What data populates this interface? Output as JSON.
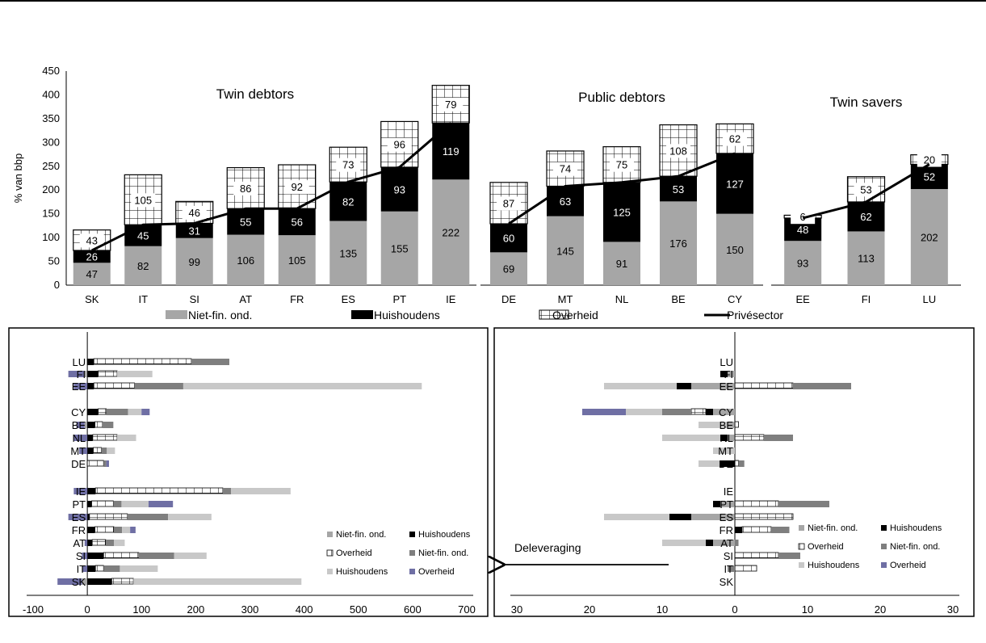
{
  "colors": {
    "nonfin": "#a6a6a6",
    "households": "#000000",
    "government": "#ffffff",
    "nonfin_flow": "#7f7f7f",
    "households_flow": "#c8c8c8",
    "government_flow": "#6f6fa4"
  },
  "chart_data": [
    {
      "type": "bar",
      "stacked": true,
      "ylabel": "% van bbp",
      "ylim": [
        0,
        450
      ],
      "yticks": [
        0,
        50,
        100,
        150,
        200,
        250,
        300,
        350,
        400,
        450
      ],
      "groups": [
        {
          "title": "Twin debtors",
          "categories": [
            "SK",
            "IT",
            "SI",
            "AT",
            "FR",
            "ES",
            "PT",
            "IE"
          ]
        },
        {
          "title": "Public debtors",
          "categories": [
            "DE",
            "MT",
            "NL",
            "BE",
            "CY"
          ]
        },
        {
          "title": "Twin savers",
          "categories": [
            "EE",
            "FI",
            "LU"
          ]
        }
      ],
      "categories": [
        "SK",
        "IT",
        "SI",
        "AT",
        "FR",
        "ES",
        "PT",
        "IE",
        "DE",
        "MT",
        "NL",
        "BE",
        "CY",
        "EE",
        "FI",
        "LU"
      ],
      "series": [
        {
          "name": "Niet-fin. ond.",
          "values": [
            47,
            82,
            99,
            106,
            105,
            135,
            155,
            222,
            69,
            145,
            91,
            176,
            150,
            93,
            113,
            202
          ]
        },
        {
          "name": "Huishoudens",
          "values": [
            26,
            45,
            31,
            55,
            56,
            82,
            93,
            119,
            60,
            63,
            125,
            53,
            127,
            48,
            62,
            52
          ]
        },
        {
          "name": "Overheid",
          "values": [
            43,
            105,
            46,
            86,
            92,
            73,
            96,
            79,
            87,
            74,
            75,
            108,
            62,
            6,
            53,
            20
          ]
        },
        {
          "name": "Privésector",
          "type": "line",
          "values": [
            73,
            127,
            130,
            161,
            161,
            217,
            248,
            341,
            129,
            208,
            216,
            229,
            277,
            141,
            175,
            254
          ]
        }
      ]
    },
    {
      "type": "bar",
      "orientation": "horizontal",
      "stacked": true,
      "xlim": [
        -100,
        700
      ],
      "xticks": [
        "-100",
        "0",
        "100",
        "200",
        "300",
        "400",
        "500",
        "600",
        "700"
      ],
      "categories": [
        "LU",
        "FI",
        "EE",
        "CY",
        "BE",
        "NL",
        "MT",
        "DE",
        "IE",
        "PT",
        "ES",
        "FR",
        "AT",
        "SI",
        "IT",
        "SK"
      ],
      "series": [
        {
          "name": "Niet-fin. ond.",
          "values": [
            0,
            -5,
            0,
            0,
            -5,
            0,
            0,
            0,
            0,
            0,
            0,
            0,
            0,
            0,
            0,
            -10
          ]
        },
        {
          "name": "Huishoudens",
          "values": [
            12,
            20,
            12,
            20,
            14,
            10,
            11,
            0,
            15,
            8,
            4,
            14,
            9,
            30,
            15,
            45
          ]
        },
        {
          "name": "Overheid",
          "values": [
            180,
            35,
            75,
            15,
            14,
            45,
            15,
            30,
            235,
            40,
            70,
            35,
            25,
            65,
            15,
            40
          ]
        },
        {
          "name": "Niet-fin. ond.",
          "values": [
            70,
            0,
            90,
            40,
            20,
            0,
            10,
            5,
            15,
            15,
            75,
            15,
            15,
            65,
            30,
            0
          ]
        },
        {
          "name": "Huishoudens",
          "values": [
            0,
            65,
            440,
            25,
            0,
            35,
            15,
            0,
            110,
            50,
            80,
            15,
            20,
            60,
            70,
            310
          ]
        },
        {
          "name": "Overheid",
          "values": [
            0,
            -30,
            -25,
            15,
            -15,
            -25,
            -15,
            5,
            -25,
            45,
            -35,
            10,
            -5,
            -10,
            -10,
            -45
          ]
        }
      ],
      "legend": [
        "Niet-fin. ond.",
        "Huishoudens",
        "Overheid",
        "Niet-fin. ond.",
        "Huishoudens",
        "Overheid"
      ]
    },
    {
      "type": "bar",
      "orientation": "horizontal",
      "stacked": true,
      "xlim": [
        -30,
        30
      ],
      "xticks": [
        "30",
        "20",
        "10",
        "0",
        "10",
        "20",
        "30"
      ],
      "annotation": "Deleveraging",
      "categories": [
        "LU",
        "FI",
        "EE",
        "CY",
        "BE",
        "NL",
        "MT",
        "DE",
        "IE",
        "PT",
        "ES",
        "FR",
        "AT",
        "SI",
        "IT",
        "SK"
      ],
      "series": [
        {
          "name": "Niet-fin. ond.",
          "values": [
            0,
            -1,
            -6,
            -3,
            -1,
            -1,
            0,
            0,
            0,
            -2,
            -6,
            0,
            -3,
            0,
            0,
            0
          ]
        },
        {
          "name": "Huishoudens",
          "values": [
            0,
            -1,
            -2,
            -1,
            0,
            -1,
            0,
            -2,
            0,
            -1,
            -3,
            1,
            -1,
            0,
            0,
            0
          ]
        },
        {
          "name": "Overheid",
          "values": [
            0,
            0,
            8,
            -2,
            0.5,
            4,
            0,
            0.5,
            0,
            6,
            8,
            4,
            0,
            6,
            3,
            0
          ]
        },
        {
          "name": "Niet-fin. ond.",
          "values": [
            0,
            0,
            8,
            -4,
            0,
            4,
            0,
            0.8,
            0,
            7,
            0,
            2.5,
            0.5,
            3,
            -1,
            0
          ]
        },
        {
          "name": "Huishoudens",
          "values": [
            0,
            0,
            -10,
            -5,
            -4,
            -8,
            -3,
            -3,
            0,
            0,
            -9,
            0,
            -6,
            0,
            0,
            0
          ]
        },
        {
          "name": "Overheid",
          "values": [
            0,
            0,
            0,
            -6,
            0,
            0,
            0,
            0,
            0,
            0,
            0,
            0,
            0,
            0,
            0,
            0
          ]
        }
      ],
      "legend": [
        "Niet-fin. ond.",
        "Huishoudens",
        "Overheid",
        "Niet-fin. ond.",
        "Huishoudens",
        "Overheid"
      ]
    }
  ]
}
